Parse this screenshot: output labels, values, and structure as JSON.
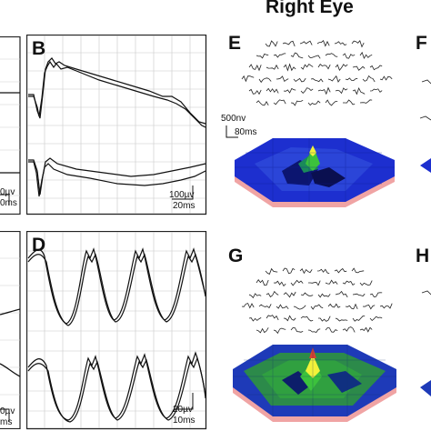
{
  "header": {
    "title": "Right Eye"
  },
  "panels": {
    "B": {
      "letter": "B",
      "scale_amplitude": "100µv",
      "scale_time": "20ms"
    },
    "D": {
      "letter": "D",
      "scale_amplitude": "20µv",
      "scale_time": "10ms"
    },
    "E": {
      "letter": "E",
      "scale_amplitude": "500nv",
      "scale_time": "80ms"
    },
    "F": {
      "letter": "F"
    },
    "G": {
      "letter": "G"
    },
    "H": {
      "letter": "H"
    }
  },
  "left_edge": {
    "top_scale_amplitude": "0µv",
    "top_scale_time": "0ms",
    "bottom_scale_amplitude": "0µv",
    "bottom_scale_time": "ms"
  },
  "colors": {
    "grid": "#bdbdbd",
    "trace": "#1a1a1a",
    "map_base": "#1a2fd0",
    "map_edge": "#f0a0a0",
    "peak_green": "#3cc23c",
    "peak_yellow": "#f2f23a",
    "peak_red": "#d84030"
  }
}
